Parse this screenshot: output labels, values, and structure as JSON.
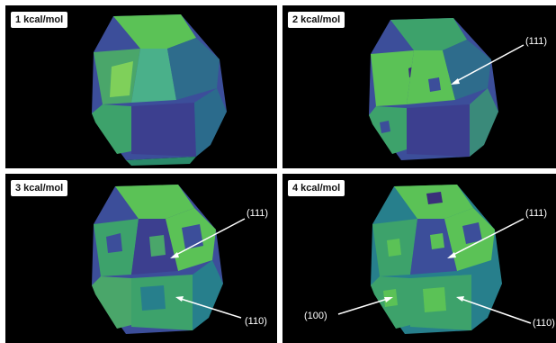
{
  "panels": [
    {
      "label": "1 kcal/mol",
      "annotations": []
    },
    {
      "label": "2 kcal/mol",
      "annotations": [
        {
          "text": "(111)"
        }
      ]
    },
    {
      "label": "3 kcal/mol",
      "annotations": [
        {
          "text": "(111)"
        },
        {
          "text": "(110)"
        }
      ]
    },
    {
      "label": "4 kcal/mol",
      "annotations": [
        {
          "text": "(111)"
        },
        {
          "text": "(100)"
        },
        {
          "text": "(110)"
        }
      ]
    }
  ],
  "colors": {
    "background": "#000000",
    "divider": "#ffffff",
    "face_light_green": "#5bc256",
    "face_green": "#3da26b",
    "face_teal": "#277f8c",
    "face_blue_purple": "#3c4e9a",
    "face_dark_purple": "#3a2f7a",
    "label_box": "#ffffff",
    "arrow": "#ffffff"
  }
}
